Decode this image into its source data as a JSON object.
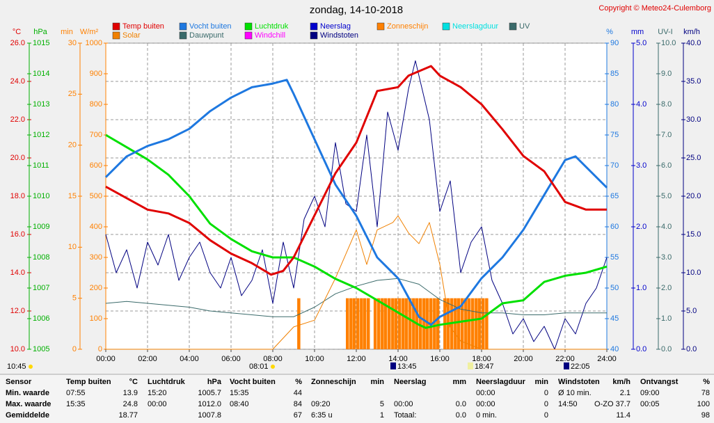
{
  "chart_data": {
    "type": "line",
    "title": "zondag, 14-10-2018",
    "copyright": "Copyright © Meteo24-Culemborg",
    "grid": true,
    "xlim": [
      0,
      24
    ],
    "xticks": [
      {
        "value": 0,
        "label": "00:00"
      },
      {
        "value": 2,
        "label": "02:00"
      },
      {
        "value": 4,
        "label": "04:00"
      },
      {
        "value": 6,
        "label": "06:00"
      },
      {
        "value": 8,
        "label": "08:00"
      },
      {
        "value": 10,
        "label": "10:00"
      },
      {
        "value": 12,
        "label": "12:00"
      },
      {
        "value": 14,
        "label": "14:00"
      },
      {
        "value": 16,
        "label": "16:00"
      },
      {
        "value": 18,
        "label": "18:00"
      },
      {
        "value": 20,
        "label": "20:00"
      },
      {
        "value": 22,
        "label": "22:00"
      },
      {
        "value": 24,
        "label": "24:00"
      }
    ],
    "axes": [
      {
        "label": "°C",
        "color": "#e00000",
        "lim": [
          10,
          26
        ],
        "ticks": [
          {
            "value": 10,
            "label": "10.0"
          },
          {
            "value": 12,
            "label": "12.0"
          },
          {
            "value": 14,
            "label": "14.0"
          },
          {
            "value": 16,
            "label": "16.0"
          },
          {
            "value": 18,
            "label": "18.0"
          },
          {
            "value": 20,
            "label": "20.0"
          },
          {
            "value": 22,
            "label": "22.0"
          },
          {
            "value": 24,
            "label": "24.0"
          },
          {
            "value": 26,
            "label": "26.0"
          }
        ]
      },
      {
        "label": "hPa",
        "color": "#00b000",
        "lim": [
          1005,
          1015
        ],
        "ticks": [
          1005,
          1006,
          1007,
          1008,
          1009,
          1010,
          1011,
          1012,
          1013,
          1014,
          1015
        ]
      },
      {
        "label": "min",
        "color": "#ff8000",
        "lim": [
          0,
          30
        ],
        "ticks": [
          0,
          5,
          10,
          15,
          20,
          25,
          30
        ]
      },
      {
        "label": "W/m²",
        "color": "#ff8000",
        "lim": [
          0,
          1000
        ],
        "ticks": [
          0,
          100,
          200,
          300,
          400,
          500,
          600,
          700,
          800,
          900,
          1000
        ]
      },
      {
        "label": "%",
        "color": "#1e78e0",
        "lim": [
          40,
          90
        ],
        "ticks": [
          40,
          45,
          50,
          55,
          60,
          65,
          70,
          75,
          80,
          85,
          90
        ]
      },
      {
        "label": "mm",
        "color": "#0000cc",
        "lim": [
          0,
          5
        ],
        "ticks": [
          {
            "value": 0,
            "label": "0.0"
          },
          {
            "value": 1,
            "label": "1.0"
          },
          {
            "value": 2,
            "label": "2.0"
          },
          {
            "value": 3,
            "label": "3.0"
          },
          {
            "value": 4,
            "label": "4.0"
          },
          {
            "value": 5,
            "label": "5.0"
          }
        ]
      },
      {
        "label": "UV-I",
        "color": "#3a6a6a",
        "lim": [
          0,
          10
        ],
        "ticks": [
          {
            "value": 0,
            "label": "0.0"
          },
          {
            "value": 1,
            "label": "1.0"
          },
          {
            "value": 2,
            "label": "2.0"
          },
          {
            "value": 3,
            "label": "3.0"
          },
          {
            "value": 4,
            "label": "4.0"
          },
          {
            "value": 5,
            "label": "5.0"
          },
          {
            "value": 6,
            "label": "6.0"
          },
          {
            "value": 7,
            "label": "7.0"
          },
          {
            "value": 8,
            "label": "8.0"
          },
          {
            "value": 9,
            "label": "9.0"
          },
          {
            "value": 10,
            "label": "10.0"
          }
        ]
      },
      {
        "label": "km/h",
        "color": "#000080",
        "lim": [
          0,
          40
        ],
        "ticks": [
          {
            "value": 0,
            "label": "0.0"
          },
          {
            "value": 5,
            "label": "5.0"
          },
          {
            "value": 10,
            "label": "10.0"
          },
          {
            "value": 15,
            "label": "15.0"
          },
          {
            "value": 20,
            "label": "20.0"
          },
          {
            "value": 25,
            "label": "25.0"
          },
          {
            "value": 30,
            "label": "30.0"
          },
          {
            "value": 35,
            "label": "35.0"
          },
          {
            "value": 40,
            "label": "40.0"
          }
        ]
      }
    ],
    "series": [
      {
        "name": "Temp buiten",
        "color": "#e00000",
        "type": "line",
        "axis": 0,
        "x": [
          0,
          1,
          2,
          3,
          4,
          5,
          6,
          7,
          7.92,
          8.5,
          9,
          10,
          11,
          12,
          13,
          14,
          14.5,
          15.58,
          16,
          17,
          18,
          19,
          20,
          21,
          22,
          23,
          24
        ],
        "values": [
          18.5,
          17.9,
          17.3,
          17.1,
          16.6,
          15.7,
          15.0,
          14.5,
          13.9,
          14.1,
          14.8,
          17.0,
          19.2,
          20.8,
          23.5,
          23.7,
          24.3,
          24.8,
          24.3,
          23.7,
          22.8,
          21.5,
          20.1,
          19.3,
          17.7,
          17.3,
          17.3
        ]
      },
      {
        "name": "Solar",
        "color": "#f08000",
        "type": "line",
        "axis": 3,
        "x": [
          0,
          8,
          9,
          10,
          11,
          12,
          12.5,
          13,
          13.75,
          14,
          14.5,
          15,
          15.5,
          16,
          16.5,
          17,
          18,
          24
        ],
        "values": [
          0,
          0,
          73,
          95,
          232,
          390,
          277,
          390,
          414,
          436,
          380,
          345,
          414,
          277,
          73,
          27,
          0,
          0
        ]
      },
      {
        "name": "Vocht buiten",
        "color": "#1e78e0",
        "type": "line",
        "axis": 4,
        "x": [
          0,
          1,
          2,
          3,
          4,
          5,
          6,
          7,
          8,
          8.67,
          9,
          10,
          11,
          12,
          13,
          14,
          15,
          15.58,
          16,
          17,
          18,
          19,
          20,
          21,
          22,
          22.5,
          23,
          24
        ],
        "values": [
          68.1,
          71.5,
          73.2,
          74.3,
          76,
          78.9,
          81.1,
          82.8,
          83.4,
          84,
          81.7,
          74.3,
          66.9,
          61.8,
          55,
          51.6,
          45.3,
          44,
          45.3,
          47,
          51.6,
          55,
          59.5,
          65.2,
          70.9,
          71.5,
          69.8,
          66.4
        ]
      },
      {
        "name": "Dauwpunt",
        "color": "#3a6a6a",
        "type": "line",
        "axis": 0,
        "x": [
          0,
          1,
          2,
          3,
          4,
          5,
          6,
          7,
          8,
          9,
          10,
          11,
          12,
          13,
          14,
          15,
          16,
          17,
          18,
          19,
          20,
          21,
          22,
          23,
          24
        ],
        "values": [
          12.4,
          12.5,
          12.4,
          12.3,
          12.2,
          12.0,
          11.9,
          11.8,
          11.7,
          11.7,
          12.2,
          12.9,
          13.3,
          13.6,
          13.7,
          13.4,
          12.6,
          12.1,
          11.9,
          11.9,
          11.8,
          11.8,
          11.9,
          11.9,
          11.9
        ]
      },
      {
        "name": "Luchtdruk",
        "color": "#00e000",
        "type": "line",
        "axis": 1,
        "x": [
          0,
          1,
          2,
          3,
          4,
          5,
          6,
          7,
          8,
          9,
          10,
          11,
          12,
          13,
          14,
          15,
          15.33,
          16,
          17,
          18,
          19,
          20,
          21,
          22,
          23,
          24
        ],
        "values": [
          1012.0,
          1011.6,
          1011.2,
          1010.7,
          1010.0,
          1009.1,
          1008.6,
          1008.2,
          1008.0,
          1008.0,
          1007.7,
          1007.3,
          1007.0,
          1006.6,
          1006.2,
          1005.8,
          1005.7,
          1005.8,
          1005.9,
          1006.0,
          1006.5,
          1006.6,
          1007.2,
          1007.4,
          1007.5,
          1007.7
        ]
      },
      {
        "name": "Windchill",
        "color": "#ff00ff"
      },
      {
        "name": "Neerslag",
        "color": "#0000cc"
      },
      {
        "name": "Windstoten",
        "color": "#000080",
        "type": "line",
        "axis": 7,
        "x": [
          0,
          0.5,
          1,
          1.5,
          2,
          2.5,
          3,
          3.5,
          4,
          4.5,
          5,
          5.5,
          6,
          6.5,
          7,
          7.5,
          8,
          8.5,
          9,
          9.5,
          10,
          10.5,
          11,
          11.5,
          12,
          12.5,
          13,
          13.5,
          14,
          14.5,
          14.83,
          15.5,
          16,
          16.5,
          17,
          17.5,
          18,
          18.5,
          19,
          19.5,
          20,
          20.5,
          21,
          21.5,
          22,
          22.5,
          23,
          23.5,
          24
        ],
        "values": [
          15,
          10,
          13,
          8,
          14,
          11,
          15,
          9,
          12,
          14,
          10,
          8,
          12,
          7,
          9,
          13,
          6,
          14,
          8,
          17,
          20,
          16,
          27,
          19,
          18,
          28,
          16,
          31,
          26,
          34,
          37.7,
          30,
          18,
          22,
          10,
          14,
          16,
          9,
          6,
          2,
          4,
          1,
          3,
          0,
          4,
          2,
          6,
          8,
          12
        ]
      },
      {
        "name": "Zonneschijn",
        "color": "#ff8000",
        "type": "bar",
        "axis": 2,
        "x": [
          9.17,
          11.5,
          11.67,
          11.83,
          12,
          12.17,
          12.33,
          12.5,
          12.83,
          13,
          13.17,
          13.33,
          13.5,
          13.67,
          13.83,
          14,
          14.17,
          14.33,
          14.5,
          14.67,
          14.83,
          15,
          15.17,
          15.33,
          15.5,
          15.67,
          15.83,
          16.17,
          16.33,
          16.5,
          16.67,
          16.83,
          17,
          17.17,
          17.33,
          17.5,
          17.67,
          17.83,
          18,
          18.17
        ],
        "values": [
          5,
          5,
          5,
          5,
          5,
          5,
          5,
          5,
          5,
          5,
          5,
          5,
          5,
          5,
          5,
          5,
          5,
          5,
          5,
          5,
          5,
          5,
          5,
          5,
          5,
          5,
          5,
          5,
          5,
          5,
          5,
          5,
          5,
          5,
          5,
          5,
          5,
          5,
          5,
          5
        ]
      },
      {
        "name": "Neerslagduur",
        "color": "#00e0e0"
      },
      {
        "name": "UV",
        "color": "#3a6a6a"
      }
    ],
    "annotations": [
      "10:45",
      "08:01",
      "13:45",
      "18:47",
      "22:05"
    ]
  },
  "summary": {
    "rows": [
      [
        "Sensor",
        "Temp buiten",
        "°C",
        "Luchtdruk",
        "hPa",
        "Vocht buiten",
        "%",
        "Zonneschijn",
        "min",
        "Neerslag",
        "mm",
        "Neerslagduur",
        "min",
        "Windstoten",
        "km/h",
        "Ontvangst",
        "%"
      ],
      [
        "Min. waarde",
        "07:55",
        "13.9",
        "15:20",
        "1005.7",
        "15:35",
        "44",
        null,
        null,
        null,
        null,
        "00:00",
        "0",
        "Ø 10 min.",
        "2.1",
        "09:00",
        "78"
      ],
      [
        "Max. waarde",
        "15:35",
        "24.8",
        "00:00",
        "1012.0",
        "08:40",
        "84",
        "09:20",
        "5",
        "00:00",
        "0.0",
        "00:00",
        "0",
        "14:50",
        "O-ZO 37.7",
        "00:05",
        "100"
      ],
      [
        "Gemiddelde",
        null,
        "18.77",
        null,
        "1007.8",
        null,
        "67",
        "6:35 u",
        "1",
        "Totaal:",
        "0.0",
        "0 min.",
        "0",
        null,
        "11.4",
        null,
        "98"
      ]
    ]
  }
}
